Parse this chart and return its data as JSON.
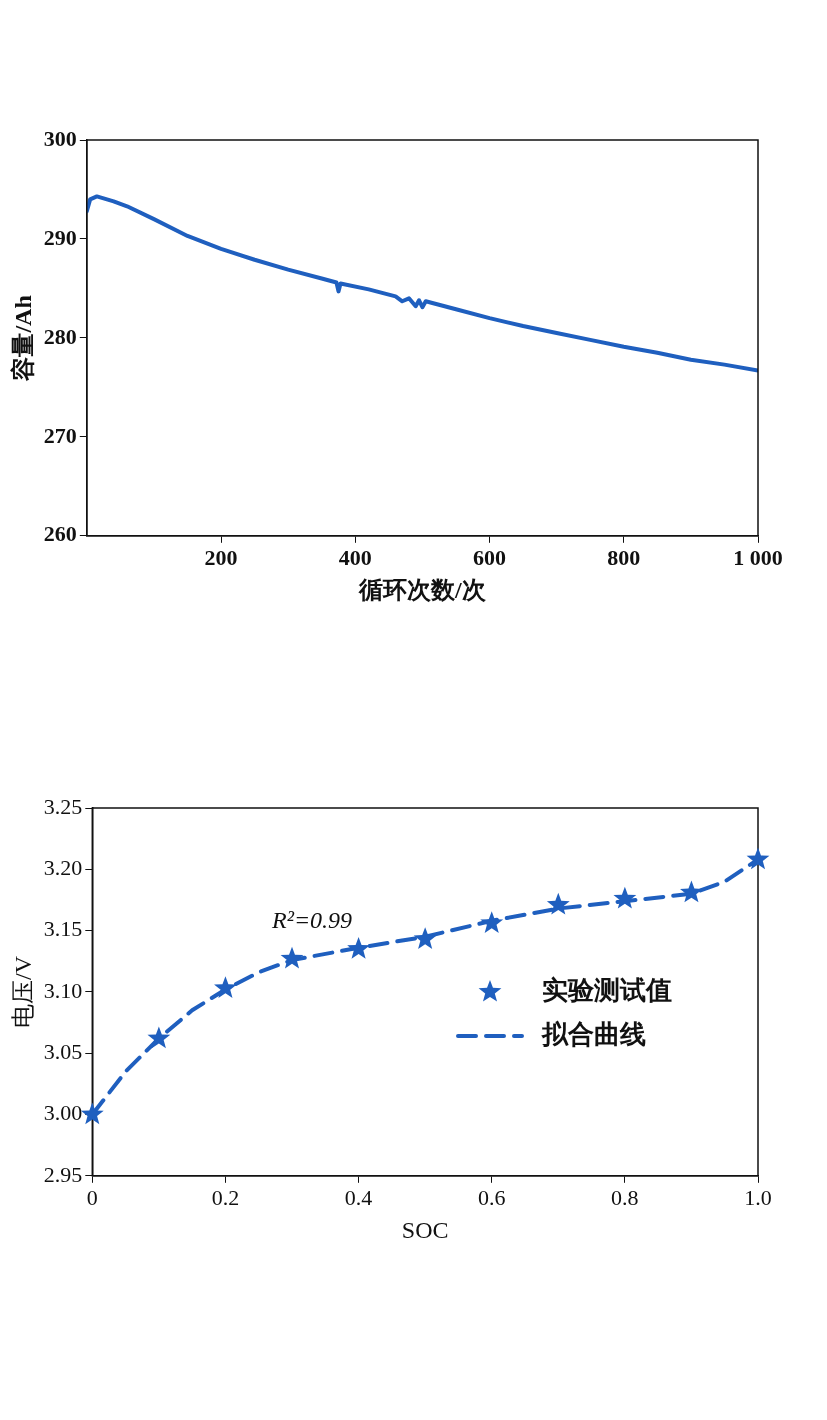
{
  "chart_data": [
    {
      "type": "line",
      "xlabel": "循环次数/次",
      "ylabel": "容量/Ah",
      "xlim": [
        0,
        1000
      ],
      "xticks": [
        200,
        400,
        600,
        800,
        {
          "value": 1000,
          "label": "1 000"
        }
      ],
      "ylim": [
        260,
        300
      ],
      "yticks": [
        260,
        270,
        280,
        290,
        300
      ],
      "series": [
        {
          "color": "#1f5fbf",
          "x": [
            0,
            5,
            15,
            40,
            60,
            100,
            150,
            200,
            250,
            300,
            350,
            372,
            375,
            378,
            420,
            460,
            470,
            480,
            490,
            495,
            500,
            505,
            550,
            600,
            650,
            700,
            750,
            800,
            850,
            900,
            950,
            1000
          ],
          "values": [
            292.8,
            294.0,
            294.3,
            293.8,
            293.3,
            292.0,
            290.3,
            289.0,
            287.9,
            286.9,
            286.0,
            285.6,
            284.7,
            285.5,
            284.9,
            284.2,
            283.7,
            284.0,
            283.2,
            283.8,
            283.1,
            283.7,
            282.9,
            282.0,
            281.2,
            280.5,
            279.8,
            279.1,
            278.5,
            277.8,
            277.3,
            276.7
          ]
        }
      ]
    },
    {
      "type": "line",
      "xlabel": "SOC",
      "ylabel": "电压/V",
      "xlim": [
        0,
        1
      ],
      "xticks": [
        0,
        0.2,
        0.4,
        0.6,
        0.8,
        {
          "value": 1,
          "label": "1.0"
        }
      ],
      "ylim": [
        2.95,
        3.25
      ],
      "yticks": [
        2.95,
        {
          "value": 3,
          "label": "3.00"
        },
        3.05,
        {
          "value": 3.1,
          "label": "3.10"
        },
        3.15,
        {
          "value": 3.2,
          "label": "3.20"
        },
        3.25
      ],
      "legend": "right",
      "annotations": [
        "R²=0.99"
      ],
      "series": [
        {
          "name": "实验测试值",
          "type": "scatter",
          "marker": "star",
          "color": "#1f5fbf",
          "x": [
            0,
            0.1,
            0.2,
            0.3,
            0.4,
            0.5,
            0.6,
            0.7,
            0.8,
            0.9,
            1.0
          ],
          "values": [
            3.0,
            3.062,
            3.103,
            3.127,
            3.135,
            3.143,
            3.156,
            3.171,
            3.176,
            3.181,
            3.208
          ]
        },
        {
          "name": "拟合曲线",
          "type": "line",
          "line_style": "dashed",
          "color": "#1f5fbf",
          "x": [
            0,
            0.05,
            0.1,
            0.15,
            0.2,
            0.25,
            0.3,
            0.4,
            0.5,
            0.6,
            0.7,
            0.8,
            0.9,
            0.95,
            1.0
          ],
          "values": [
            3.0,
            3.035,
            3.062,
            3.085,
            3.102,
            3.116,
            3.126,
            3.136,
            3.145,
            3.158,
            3.168,
            3.174,
            3.18,
            3.19,
            3.208
          ]
        }
      ]
    }
  ]
}
